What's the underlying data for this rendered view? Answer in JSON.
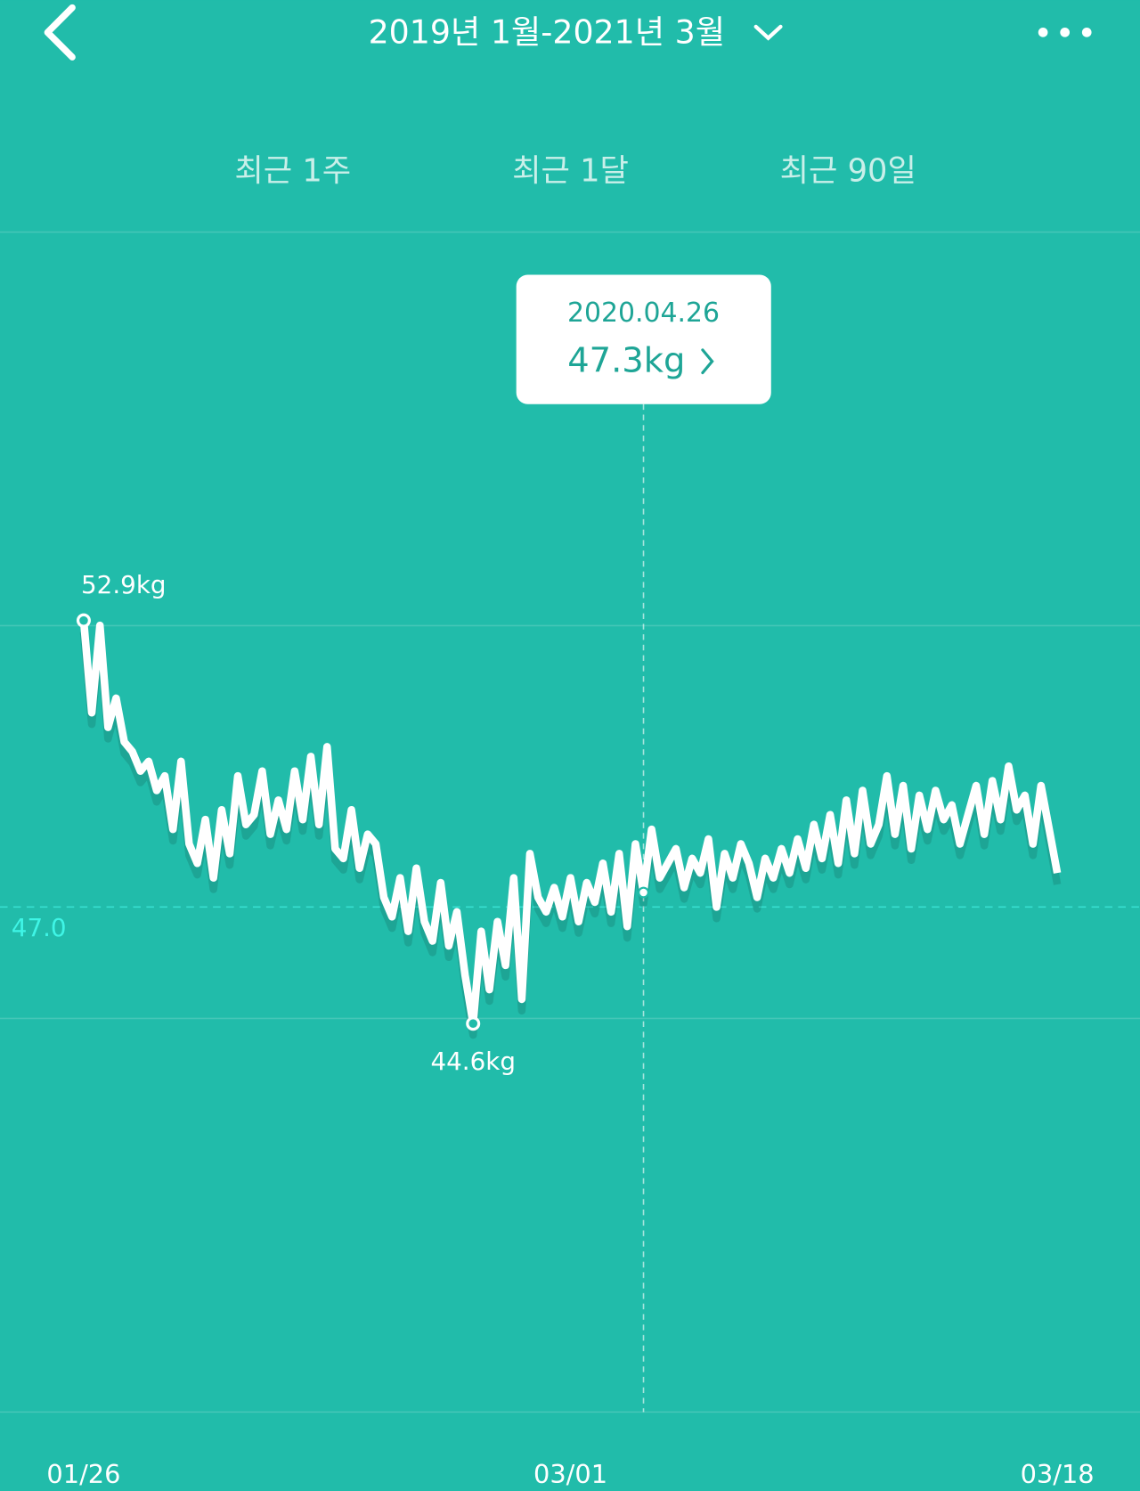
{
  "header": {
    "title": "2019년 1월-2021년 3월"
  },
  "tabs": [
    "최근 1주",
    "최근 1달",
    "최근 90일"
  ],
  "chart_data": {
    "type": "line",
    "color": "#ffffff",
    "categories": [
      "01/26",
      null,
      null,
      null,
      null,
      null,
      null,
      null,
      null,
      null,
      null,
      null,
      null,
      null,
      null,
      null,
      null,
      null,
      null,
      null,
      null,
      null,
      null,
      null,
      null,
      null,
      null,
      null,
      null,
      null,
      null,
      null,
      null,
      null,
      null,
      null,
      null,
      null,
      null,
      null,
      null,
      null,
      null,
      null,
      null,
      null,
      null,
      null,
      null,
      null,
      null,
      null,
      null,
      null,
      null,
      null,
      null,
      null,
      null,
      null,
      "03/01",
      null,
      null,
      null,
      null,
      null,
      null,
      null,
      null,
      null,
      null,
      null,
      null,
      null,
      null,
      null,
      null,
      null,
      null,
      null,
      null,
      null,
      null,
      null,
      null,
      null,
      null,
      null,
      null,
      null,
      null,
      null,
      null,
      null,
      null,
      null,
      null,
      null,
      null,
      null,
      null,
      null,
      null,
      null,
      null,
      null,
      null,
      null,
      null,
      null,
      null,
      null,
      null,
      null,
      null,
      null,
      null,
      null,
      null,
      null,
      "03/18"
    ],
    "values": [
      52.9,
      51.0,
      52.8,
      50.7,
      51.3,
      50.4,
      50.2,
      49.8,
      50.0,
      49.4,
      49.7,
      48.6,
      50.0,
      48.3,
      47.9,
      48.8,
      47.6,
      49.0,
      48.1,
      49.7,
      48.7,
      48.9,
      49.8,
      48.5,
      49.2,
      48.6,
      49.8,
      48.8,
      50.1,
      48.7,
      50.3,
      48.2,
      48.0,
      49.0,
      47.8,
      48.5,
      48.3,
      47.2,
      46.8,
      47.6,
      46.5,
      47.8,
      46.7,
      46.3,
      47.5,
      46.2,
      46.9,
      45.6,
      44.6,
      46.5,
      45.3,
      46.7,
      45.8,
      47.6,
      45.1,
      48.1,
      47.2,
      46.9,
      47.4,
      46.8,
      47.6,
      46.7,
      47.5,
      47.1,
      47.9,
      46.9,
      48.1,
      46.6,
      48.3,
      47.3,
      48.6,
      47.6,
      47.9,
      48.2,
      47.4,
      48.0,
      47.7,
      48.4,
      47.0,
      48.1,
      47.6,
      48.3,
      47.9,
      47.2,
      48.0,
      47.6,
      48.2,
      47.7,
      48.4,
      47.8,
      48.7,
      48.0,
      48.9,
      47.9,
      49.2,
      48.1,
      49.4,
      48.3,
      48.7,
      49.7,
      48.5,
      49.5,
      48.2,
      49.3,
      48.6,
      49.4,
      48.8,
      49.1,
      48.3,
      48.9,
      49.5,
      48.5,
      49.6,
      48.8,
      49.9,
      49.0,
      49.3,
      48.3,
      49.5,
      48.6,
      47.7
    ],
    "value_labels": [
      "52.9kg",
      null,
      null,
      null,
      null,
      null,
      null,
      null,
      null,
      null,
      null,
      null,
      null,
      null,
      null,
      null,
      null,
      null,
      null,
      null,
      null,
      null,
      null,
      null,
      null,
      null,
      null,
      null,
      null,
      null,
      null,
      null,
      null,
      null,
      null,
      null,
      null,
      null,
      null,
      null,
      null,
      null,
      null,
      null,
      null,
      null,
      null,
      null,
      "44.6kg",
      null,
      null,
      null,
      null,
      null,
      null,
      null,
      null,
      null,
      null,
      null,
      null,
      null,
      null,
      null,
      null,
      null,
      null,
      null,
      null,
      null,
      null,
      null,
      null,
      null,
      null,
      null,
      null,
      null,
      null,
      null,
      null,
      null,
      null,
      null,
      null,
      null,
      null,
      null,
      null,
      null,
      null,
      null,
      null,
      null,
      null,
      null,
      null,
      null,
      null,
      null,
      null,
      null,
      null,
      null,
      null,
      null,
      null,
      null,
      null,
      null,
      null,
      null,
      null,
      null,
      null,
      null,
      null,
      null,
      null,
      null,
      null
    ],
    "tooltip": {
      "date": "2020.04.26",
      "value": 47.3,
      "label": "47.3kg"
    },
    "ylim": [
      36.6,
      60.9
    ],
    "yticks": [
      {
        "value": 47,
        "label": "47.0"
      }
    ]
  }
}
